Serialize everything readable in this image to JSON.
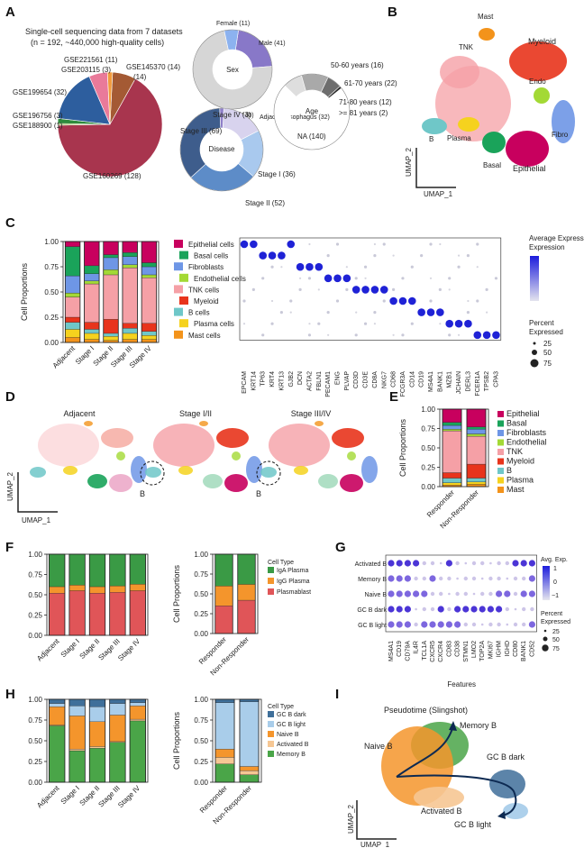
{
  "panel_labels": [
    "A",
    "B",
    "C",
    "D",
    "E",
    "F",
    "G",
    "H",
    "I"
  ],
  "colors": {
    "Epithelial": "#c8005e",
    "Basal": "#1aa35a",
    "Fibroblasts": "#6e96e6",
    "Endothelial": "#a3d935",
    "TNK": "#f5a0a6",
    "Myeloid": "#e8341c",
    "B": "#6fc7c8",
    "Plasma": "#f5d21e",
    "Mast": "#f3931b",
    "IgA Plasma": "#3a9a45",
    "IgG Plasma": "#f4952c",
    "Plasmablast": "#e05558",
    "GC B dark": "#3f6f9a",
    "GC B light": "#a9cdea",
    "Naive B": "#f4952c",
    "Activated B": "#f6c794",
    "Memory B": "#4aa548"
  },
  "panelA": {
    "title_line1": "Single-cell sequencing data from 7 datasets",
    "title_line2": "(n = 192, ~440,000 high-quality cells)",
    "pie_slices": [
      {
        "label": "GSE160269 (128)",
        "value": 128,
        "color": "#a8354e"
      },
      {
        "label": "GSE199654 (32)",
        "value": 32,
        "color": "#2d5e9e"
      },
      {
        "label": "GSE196756 (3)",
        "value": 3,
        "color": "#2e8a3c"
      },
      {
        "label": "GSE188900 (1)",
        "value": 1,
        "color": "#8db04a"
      },
      {
        "label": "GSE221561 (11)",
        "value": 11,
        "color": "#e97a9a"
      },
      {
        "label": "GSE203115 (3)",
        "value": 3,
        "color": "#f29b3c"
      },
      {
        "label": "GSE145370 (14)",
        "value": 14,
        "color": "#a45a34"
      }
    ],
    "sex": {
      "center": "Sex",
      "segments": [
        {
          "label": "Female (11)",
          "value": 11,
          "color": "#8cb2ef"
        },
        {
          "label": "Male (41)",
          "value": 41,
          "color": "#8878c8"
        },
        {
          "label": "NA (140)",
          "value": 140,
          "color": "#d6d6d6"
        }
      ]
    },
    "disease": {
      "center": "Disease",
      "segments": [
        {
          "label": "Adjacent esophagus (32)",
          "value": 32,
          "color": "#d8d3ee"
        },
        {
          "label": "Stage I (36)",
          "value": 36,
          "color": "#a9c9ee"
        },
        {
          "label": "Stage II (52)",
          "value": 52,
          "color": "#5d8cc8"
        },
        {
          "label": "Stage III (69)",
          "value": 69,
          "color": "#3e5d8c"
        },
        {
          "label": "Stage IV (3)",
          "value": 3,
          "color": "#8f7fc9"
        }
      ]
    },
    "age": {
      "center": "Age",
      "segments": [
        {
          "label": "50-60 years (16)",
          "value": 16,
          "color": "#dedede"
        },
        {
          "label": "61-70 years (22)",
          "value": 22,
          "color": "#a9a9a9"
        },
        {
          "label": "71-80 years (12)",
          "value": 12,
          "color": "#6d6d6d"
        },
        {
          "label": ">= 81 years (2)",
          "value": 2,
          "color": "#2b2b2b"
        },
        {
          "label": "NA (140)",
          "value": 140,
          "color": "#ffffff"
        }
      ]
    }
  },
  "umap": {
    "x_label": "UMAP_1",
    "y_label": "UMAP_2",
    "panelB_labels": [
      "Mast",
      "TNK",
      "Myeloid",
      "Endo",
      "B",
      "Plasma",
      "Basal",
      "Fibro",
      "Epithelial"
    ],
    "panelD_titles": [
      "Adjacent",
      "Stage I/II",
      "Stage III/IV"
    ],
    "panelD_callout": "B"
  },
  "panelI": {
    "title": "Pseudotime (Slingshot)",
    "labels": [
      "Memory B",
      "Naive B",
      "GC B dark",
      "Activated B",
      "GC B light"
    ]
  },
  "chart_data": [
    {
      "id": "C-bar",
      "type": "bar",
      "stacked": true,
      "ylabel": "Cell Proportions",
      "ylim": [
        0,
        1
      ],
      "yticks": [
        "0.00",
        "0.25",
        "0.50",
        "0.75",
        "1.00"
      ],
      "categories": [
        "Adjacent",
        "Stage I",
        "Stage II",
        "Stage III",
        "Stage IV"
      ],
      "series": [
        {
          "name": "Mast",
          "values": [
            0.05,
            0.03,
            0.02,
            0.03,
            0.03
          ]
        },
        {
          "name": "Plasma",
          "values": [
            0.08,
            0.06,
            0.04,
            0.06,
            0.04
          ]
        },
        {
          "name": "B",
          "values": [
            0.07,
            0.04,
            0.03,
            0.05,
            0.04
          ]
        },
        {
          "name": "Myeloid",
          "values": [
            0.05,
            0.07,
            0.14,
            0.05,
            0.08
          ]
        },
        {
          "name": "TNK",
          "values": [
            0.2,
            0.38,
            0.44,
            0.55,
            0.45
          ]
        },
        {
          "name": "Endothelial",
          "values": [
            0.04,
            0.03,
            0.05,
            0.03,
            0.03
          ]
        },
        {
          "name": "Fibroblasts",
          "values": [
            0.17,
            0.07,
            0.12,
            0.08,
            0.08
          ]
        },
        {
          "name": "Basal",
          "values": [
            0.29,
            0.08,
            0.03,
            0.04,
            0.04
          ]
        },
        {
          "name": "Epithelial",
          "values": [
            0.05,
            0.24,
            0.13,
            0.11,
            0.21
          ]
        }
      ]
    },
    {
      "id": "C-dot",
      "type": "scatter",
      "subtype": "dotplot",
      "rows": [
        "Epithelial cells",
        "Basal cells",
        "Fibroblasts",
        "Endothelial cells",
        "TNK cells",
        "Myeloid",
        "B cells",
        "Plasma cells",
        "Mast cells"
      ],
      "row_colors": [
        "#c8005e",
        "#1aa35a",
        "#6e96e6",
        "#a3d935",
        "#f5a0a6",
        "#e8341c",
        "#6fc7c8",
        "#f5d21e",
        "#f3931b"
      ],
      "genes": [
        "EPCAM",
        "KRT14",
        "TP63",
        "KRT4",
        "KRT13",
        "GJB2",
        "DCN",
        "ACTA2",
        "FBLN1",
        "PECAM1",
        "ENG",
        "PLVAP",
        "CD3D",
        "CD3E",
        "CD8A",
        "NKG7",
        "CD68",
        "FCGR3A",
        "CD14",
        "CD19",
        "MS4A1",
        "BANK1",
        "MZB1",
        "JCHAIN",
        "DERL3",
        "FCER1A",
        "TPSB2",
        "CPA3"
      ],
      "legend": {
        "color_title": "Average Expression",
        "size_title": "Percent Expressed",
        "size_values": [
          "25",
          "50",
          "75"
        ]
      }
    },
    {
      "id": "E",
      "type": "bar",
      "stacked": true,
      "ylabel": "Cell Proportions",
      "ylim": [
        0,
        1
      ],
      "yticks": [
        "0.00",
        "0.25",
        "0.50",
        "0.75",
        "1.00"
      ],
      "categories": [
        "Responder",
        "Non-Responder"
      ],
      "series": [
        {
          "name": "Mast",
          "values": [
            0.02,
            0.03
          ]
        },
        {
          "name": "Plasma",
          "values": [
            0.03,
            0.03
          ]
        },
        {
          "name": "B",
          "values": [
            0.06,
            0.05
          ]
        },
        {
          "name": "Myeloid",
          "values": [
            0.07,
            0.18
          ]
        },
        {
          "name": "TNK",
          "values": [
            0.54,
            0.36
          ]
        },
        {
          "name": "Endothelial",
          "values": [
            0.02,
            0.03
          ]
        },
        {
          "name": "Fibroblasts",
          "values": [
            0.05,
            0.06
          ]
        },
        {
          "name": "Basal",
          "values": [
            0.04,
            0.03
          ]
        },
        {
          "name": "Epithelial",
          "values": [
            0.17,
            0.23
          ]
        }
      ],
      "legend": [
        "Epithelial",
        "Basal",
        "Fibroblasts",
        "Endothelial",
        "TNK",
        "Myeloid",
        "B",
        "Plasma",
        "Mast"
      ]
    },
    {
      "id": "F-left",
      "type": "bar",
      "stacked": true,
      "ylabel": "",
      "ylim": [
        0,
        1
      ],
      "yticks": [
        "0.00",
        "0.25",
        "0.50",
        "0.75",
        "1.00"
      ],
      "categories": [
        "Adjacent",
        "Stage I",
        "Stage II",
        "Stage III",
        "Stage IV"
      ],
      "series": [
        {
          "name": "Plasmablast",
          "values": [
            0.52,
            0.55,
            0.52,
            0.53,
            0.55
          ]
        },
        {
          "name": "IgG Plasma",
          "values": [
            0.08,
            0.07,
            0.08,
            0.08,
            0.08
          ]
        },
        {
          "name": "IgA Plasma",
          "values": [
            0.4,
            0.38,
            0.4,
            0.39,
            0.37
          ]
        }
      ]
    },
    {
      "id": "F-right",
      "type": "bar",
      "stacked": true,
      "ylabel": "Cell Proportions",
      "ylim": [
        0,
        1
      ],
      "yticks": [
        "0.00",
        "0.25",
        "0.50",
        "0.75",
        "1.00"
      ],
      "categories": [
        "Responder",
        "Non-Responder"
      ],
      "series": [
        {
          "name": "Plasmablast",
          "values": [
            0.35,
            0.42
          ]
        },
        {
          "name": "IgG Plasma",
          "values": [
            0.25,
            0.2
          ]
        },
        {
          "name": "IgA Plasma",
          "values": [
            0.4,
            0.38
          ]
        }
      ],
      "legend_title": "Cell Type",
      "legend": [
        "IgA Plasma",
        "IgG Plasma",
        "Plasmablast"
      ]
    },
    {
      "id": "G",
      "type": "scatter",
      "subtype": "dotplot",
      "xlabel": "Features",
      "rows": [
        "Activated B",
        "Memory B",
        "Naive B",
        "GC B dark",
        "GC B light"
      ],
      "genes": [
        "MS4A1",
        "CD19",
        "CD79A",
        "IL4R",
        "TCL1A",
        "CXCR5",
        "CXCR4",
        "CD83",
        "CD38",
        "STMN1",
        "LMO2",
        "TOP2A",
        "MKI67",
        "IGHM",
        "IGHD",
        "CD80",
        "BANK1",
        "CD52"
      ],
      "legend": {
        "color_title": "Avg. Exp.",
        "color_ticks": [
          "1",
          "0",
          "−1"
        ],
        "size_title": "Percent Expressed",
        "size_values": [
          "25",
          "50",
          "75"
        ]
      }
    },
    {
      "id": "H-left",
      "type": "bar",
      "stacked": true,
      "ylabel": "",
      "ylim": [
        0,
        1
      ],
      "yticks": [
        "0.00",
        "0.25",
        "0.50",
        "0.75",
        "1.00"
      ],
      "categories": [
        "Adjacent",
        "Stage I",
        "Stage II",
        "Stage III",
        "Stage IV"
      ],
      "series": [
        {
          "name": "Memory B",
          "values": [
            0.68,
            0.38,
            0.41,
            0.48,
            0.74
          ]
        },
        {
          "name": "Activated B",
          "values": [
            0.01,
            0.02,
            0.02,
            0.01,
            0.02
          ]
        },
        {
          "name": "Naive B",
          "values": [
            0.22,
            0.4,
            0.3,
            0.32,
            0.16
          ]
        },
        {
          "name": "GC B light",
          "values": [
            0.04,
            0.12,
            0.18,
            0.14,
            0.04
          ]
        },
        {
          "name": "GC B dark",
          "values": [
            0.05,
            0.08,
            0.09,
            0.05,
            0.04
          ]
        }
      ]
    },
    {
      "id": "H-right",
      "type": "bar",
      "stacked": true,
      "ylabel": "Cell Proportions",
      "ylim": [
        0,
        1
      ],
      "yticks": [
        "0.00",
        "0.25",
        "0.50",
        "0.75",
        "1.00"
      ],
      "categories": [
        "Responder",
        "Non-Responder"
      ],
      "series": [
        {
          "name": "Memory B",
          "values": [
            0.22,
            0.09
          ]
        },
        {
          "name": "Activated B",
          "values": [
            0.08,
            0.05
          ]
        },
        {
          "name": "Naive B",
          "values": [
            0.1,
            0.05
          ]
        },
        {
          "name": "GC B light",
          "values": [
            0.56,
            0.78
          ]
        },
        {
          "name": "GC B dark",
          "values": [
            0.04,
            0.03
          ]
        }
      ],
      "legend_title": "Cell Type",
      "legend": [
        "GC B dark",
        "GC B light",
        "Naive B",
        "Activated B",
        "Memory B"
      ]
    }
  ]
}
